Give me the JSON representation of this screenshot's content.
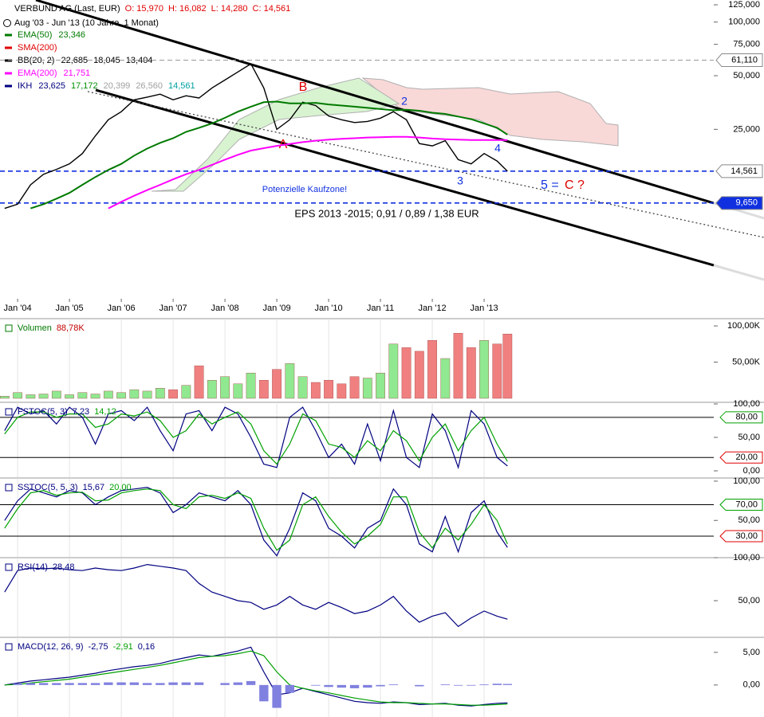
{
  "chart_data": [
    {
      "type": "line",
      "title": "VERBUND AG (Last, EUR)",
      "quote": [
        "O: 15,970",
        "H: 16,082",
        "L: 14,280",
        "C: 14,561"
      ],
      "subtitle": "Aug '03 - Jun '13 (10 Jahre, 1 Monat)",
      "log": true,
      "x": [
        2003.75,
        2004,
        2004.25,
        2004.5,
        2004.75,
        2005,
        2005.25,
        2005.5,
        2005.75,
        2006,
        2006.25,
        2006.5,
        2006.75,
        2007,
        2007.25,
        2007.5,
        2007.75,
        2008,
        2008.25,
        2008.5,
        2008.75,
        2009,
        2009.25,
        2009.5,
        2009.75,
        2010,
        2010.25,
        2010.5,
        2010.75,
        2011,
        2011.25,
        2011.5,
        2011.75,
        2012,
        2012.25,
        2012.5,
        2012.75,
        2013,
        2013.25,
        2013.45
      ],
      "xlim": [
        2003.66,
        2017.43
      ],
      "xticks": [
        {
          "value": 2004,
          "label": "Jan '04"
        },
        {
          "value": 2005,
          "label": "Jan '05"
        },
        {
          "value": 2006,
          "label": "Jan '06"
        },
        {
          "value": 2007,
          "label": "Jan '07"
        },
        {
          "value": 2008,
          "label": "Jan '08"
        },
        {
          "value": 2009,
          "label": "Jan '09"
        },
        {
          "value": 2010,
          "label": "Jan '10"
        },
        {
          "value": 2011,
          "label": "Jan '11"
        },
        {
          "value": 2012,
          "label": "Jan '12"
        },
        {
          "value": 2013,
          "label": "Jan '13"
        }
      ],
      "ylim": [
        2.8,
        133
      ],
      "yticks": [
        {
          "value": 125,
          "label": "125,000"
        },
        {
          "value": 100,
          "label": "100,000"
        },
        {
          "value": 75,
          "label": "75,000"
        },
        {
          "value": 50,
          "label": "50,000"
        },
        {
          "value": 25,
          "label": "25,000"
        }
      ],
      "series": [
        {
          "color": "#000000",
          "width": 1.4,
          "values": [
            9.0,
            9.5,
            12.2,
            14.0,
            14.9,
            16.0,
            18.3,
            23.0,
            28.3,
            31.4,
            36.6,
            37.9,
            39.4,
            36.6,
            38.6,
            37.5,
            42.7,
            47.3,
            52.5,
            58.3,
            42.7,
            25.0,
            28.3,
            35.5,
            34.0,
            29.7,
            28.3,
            27.3,
            27.7,
            28.9,
            31.4,
            28.3,
            20.8,
            20.2,
            21.6,
            16.9,
            16.0,
            18.3,
            16.6,
            14.561
          ]
        },
        {
          "color": "#007a00",
          "width": 2,
          "values": [
            null,
            null,
            9.0,
            9.5,
            10.2,
            11.0,
            12.2,
            13.5,
            14.8,
            16.0,
            17.8,
            19.5,
            21.0,
            22.3,
            24.2,
            25.5,
            27.0,
            29.0,
            31.4,
            33.5,
            35.5,
            35.8,
            35.0,
            35.0,
            35.2,
            34.5,
            34.0,
            33.5,
            33.0,
            32.5,
            32.0,
            32.2,
            31.8,
            31.0,
            30.5,
            29.5,
            28.5,
            27.0,
            25.5,
            23.35
          ]
        },
        {
          "color": "#ff00ff",
          "width": 2,
          "values": [
            null,
            null,
            null,
            null,
            null,
            null,
            null,
            null,
            9.0,
            9.8,
            10.6,
            11.4,
            12.2,
            13.1,
            14.0,
            14.8,
            15.8,
            16.9,
            18.0,
            19.0,
            19.6,
            20.2,
            20.7,
            21.2,
            21.6,
            21.9,
            22.1,
            22.3,
            22.5,
            22.6,
            22.7,
            22.7,
            22.5,
            22.2,
            22.0,
            21.9,
            21.8,
            21.8,
            21.8,
            21.75
          ]
        }
      ],
      "legend": [
        {
          "label": "EMA(50)",
          "color": "#007a00",
          "values": [
            "23,346"
          ]
        },
        {
          "label": "SMA(200)",
          "color": "#e00000"
        },
        {
          "label": "BB(20, 2)",
          "color": "#000000",
          "values": [
            "22,685",
            "18,045",
            "13,404"
          ]
        },
        {
          "label": "EMA(200)",
          "color": "#ff00ff",
          "values": [
            "21,751"
          ]
        },
        {
          "label": "IKH",
          "color": "#000080",
          "values": [
            "23,625",
            "17,172",
            "20,399",
            "26,560",
            "14,561"
          ],
          "value_colors": [
            "#000080",
            "#009000",
            "#a0a0a0",
            "#a0a0a0",
            "#00a0a0"
          ]
        }
      ],
      "levels": [
        {
          "value": 61.11,
          "label": "61,110",
          "line_color": "#999999",
          "box_fill": "#ffffff",
          "text_color": "#000000"
        },
        {
          "value": 14.561,
          "label": "14,561",
          "line_color": "#1030e0",
          "box_fill": "#ffffff",
          "text_color": "#000000"
        },
        {
          "value": 9.65,
          "label": "9,650",
          "line_color": "#1030e0",
          "box_fill": "#1030e0",
          "text_color": "#ffffff"
        }
      ],
      "annotations": [
        "A",
        "B",
        "2",
        "3",
        "4",
        "5 =",
        "C ?",
        "Potenzielle Kaufzone!",
        "EPS 2013 -2015; 0,91 / 0,89 / 1,38 EUR"
      ]
    },
    {
      "type": "bar",
      "title": "Volumen",
      "title_color": "#007a00",
      "x": [
        2003.75,
        2004,
        2004.25,
        2004.5,
        2004.75,
        2005,
        2005.25,
        2005.5,
        2005.75,
        2006,
        2006.25,
        2006.5,
        2006.75,
        2007,
        2007.25,
        2007.5,
        2007.75,
        2008,
        2008.25,
        2008.5,
        2008.75,
        2009,
        2009.25,
        2009.5,
        2009.75,
        2010,
        2010.25,
        2010.5,
        2010.75,
        2011,
        2011.25,
        2011.5,
        2011.75,
        2012,
        2012.25,
        2012.5,
        2012.75,
        2013,
        2013.25,
        2013.45
      ],
      "xlim": [
        2003.66,
        2017.43
      ],
      "ylim": [
        0,
        110
      ],
      "yticks": [
        {
          "value": 100,
          "label": "100,00K"
        },
        {
          "value": 50,
          "label": "50,00K"
        }
      ],
      "series": [
        {
          "up_color": "#90e890",
          "down_color": "#f08080",
          "label_color": "#c00000",
          "last_label": "88,78K",
          "values": [
            3,
            8,
            5,
            6,
            10,
            5,
            8,
            6,
            10,
            8,
            12,
            10,
            14,
            12,
            18,
            45,
            25,
            30,
            20,
            35,
            25,
            40,
            48,
            30,
            22,
            25,
            20,
            30,
            28,
            35,
            75,
            70,
            65,
            80,
            55,
            90,
            70,
            80,
            75,
            88.78
          ]
        }
      ]
    },
    {
      "type": "line",
      "title": "FSTOC(5, 3)",
      "title_color": "#000080",
      "x": [
        2003.75,
        2004,
        2004.25,
        2004.5,
        2004.75,
        2005,
        2005.25,
        2005.5,
        2005.75,
        2006,
        2006.25,
        2006.5,
        2006.75,
        2007,
        2007.25,
        2007.5,
        2007.75,
        2008,
        2008.25,
        2008.5,
        2008.75,
        2009,
        2009.25,
        2009.5,
        2009.75,
        2010,
        2010.25,
        2010.5,
        2010.75,
        2011,
        2011.25,
        2011.5,
        2011.75,
        2012,
        2012.25,
        2012.5,
        2012.75,
        2013,
        2013.25,
        2013.45
      ],
      "xlim": [
        2003.66,
        2017.43
      ],
      "ylim": [
        -10.7,
        102.4
      ],
      "yticks": [
        {
          "value": 100,
          "label": "100,00"
        },
        {
          "value": 50,
          "label": "50,00"
        },
        {
          "value": 0,
          "label": "0,00"
        }
      ],
      "levels": [
        {
          "value": 80,
          "label": "80,00",
          "color": "#00a000"
        },
        {
          "value": 20,
          "label": "20,00",
          "color": "#e00000"
        }
      ],
      "series": [
        {
          "color": "#000080",
          "last_label": "7,23",
          "values": [
            60,
            95,
            85,
            90,
            70,
            95,
            80,
            40,
            85,
            90,
            75,
            95,
            60,
            30,
            85,
            90,
            60,
            95,
            85,
            50,
            10,
            5,
            80,
            95,
            60,
            20,
            40,
            10,
            70,
            15,
            90,
            20,
            5,
            85,
            60,
            5,
            90,
            70,
            20,
            7.23
          ]
        },
        {
          "color": "#00a000",
          "last_label": "14,12",
          "values": [
            55,
            80,
            88,
            88,
            80,
            85,
            85,
            65,
            70,
            85,
            82,
            88,
            75,
            50,
            60,
            85,
            70,
            80,
            88,
            70,
            30,
            10,
            40,
            85,
            75,
            40,
            35,
            20,
            45,
            30,
            60,
            45,
            15,
            50,
            70,
            30,
            60,
            80,
            40,
            14.12
          ]
        }
      ]
    },
    {
      "type": "line",
      "title": "SSTOC(5, 5, 3)",
      "title_color": "#000080",
      "x": [
        2003.75,
        2004,
        2004.25,
        2004.5,
        2004.75,
        2005,
        2005.25,
        2005.5,
        2005.75,
        2006,
        2006.25,
        2006.5,
        2006.75,
        2007,
        2007.25,
        2007.5,
        2007.75,
        2008,
        2008.25,
        2008.5,
        2008.75,
        2009,
        2009.25,
        2009.5,
        2009.75,
        2010,
        2010.25,
        2010.5,
        2010.75,
        2011,
        2011.25,
        2011.5,
        2011.75,
        2012,
        2012.25,
        2012.5,
        2012.75,
        2013,
        2013.25,
        2013.45
      ],
      "xlim": [
        2003.66,
        2017.43
      ],
      "ylim": [
        2.6,
        104
      ],
      "yticks": [
        {
          "value": 100,
          "label": "100,00"
        },
        {
          "value": 50,
          "label": "50,00"
        }
      ],
      "levels": [
        {
          "value": 70,
          "label": "70,00",
          "color": "#00a000"
        },
        {
          "value": 30,
          "label": "30,00",
          "color": "#e00000"
        }
      ],
      "series": [
        {
          "color": "#000080",
          "last_label": "15,67",
          "values": [
            50,
            75,
            90,
            85,
            80,
            88,
            85,
            70,
            80,
            88,
            90,
            92,
            85,
            60,
            70,
            85,
            80,
            75,
            88,
            70,
            25,
            5,
            40,
            85,
            75,
            40,
            30,
            15,
            40,
            50,
            90,
            70,
            20,
            10,
            55,
            10,
            60,
            75,
            35,
            15.67
          ]
        },
        {
          "color": "#00a000",
          "last_label": "20,00",
          "values": [
            40,
            65,
            85,
            88,
            82,
            85,
            86,
            75,
            76,
            85,
            88,
            90,
            88,
            70,
            65,
            80,
            82,
            78,
            85,
            78,
            40,
            12,
            25,
            70,
            80,
            55,
            35,
            20,
            30,
            45,
            80,
            80,
            35,
            15,
            40,
            25,
            45,
            70,
            50,
            20.0
          ]
        }
      ]
    },
    {
      "type": "line",
      "title": "RSI(14)",
      "title_color": "#000080",
      "x": [
        2003.75,
        2004,
        2004.25,
        2004.5,
        2004.75,
        2005,
        2005.25,
        2005.5,
        2005.75,
        2006,
        2006.25,
        2006.5,
        2006.75,
        2007,
        2007.25,
        2007.5,
        2007.75,
        2008,
        2008.25,
        2008.5,
        2008.75,
        2009,
        2009.25,
        2009.5,
        2009.75,
        2010,
        2010.25,
        2010.5,
        2010.75,
        2011,
        2011.25,
        2011.5,
        2011.75,
        2012,
        2012.25,
        2012.5,
        2012.75,
        2013,
        2013.25,
        2013.45
      ],
      "xlim": [
        2003.66,
        2017.43
      ],
      "ylim": [
        7.4,
        100
      ],
      "yticks": [
        {
          "value": 100,
          "label": "100,00"
        },
        {
          "value": 50,
          "label": "50,00"
        }
      ],
      "series": [
        {
          "color": "#000080",
          "last_label": "28,48",
          "values": [
            60,
            85,
            88,
            87,
            88,
            86,
            85,
            88,
            86,
            85,
            88,
            92,
            90,
            88,
            85,
            70,
            60,
            55,
            50,
            48,
            40,
            45,
            55,
            45,
            40,
            48,
            42,
            35,
            38,
            45,
            55,
            38,
            25,
            32,
            36,
            20,
            30,
            38,
            32,
            28.48
          ]
        }
      ]
    },
    {
      "type": "line",
      "title": "MACD(12, 26, 9)",
      "title_color": "#000080",
      "x": [
        2003.75,
        2004,
        2004.25,
        2004.5,
        2004.75,
        2005,
        2005.25,
        2005.5,
        2005.75,
        2006,
        2006.25,
        2006.5,
        2006.75,
        2007,
        2007.25,
        2007.5,
        2007.75,
        2008,
        2008.25,
        2008.5,
        2008.75,
        2009,
        2009.25,
        2009.5,
        2009.75,
        2010,
        2010.25,
        2010.5,
        2010.75,
        2011,
        2011.25,
        2011.5,
        2011.75,
        2012,
        2012.25,
        2012.5,
        2012.75,
        2013,
        2013.25,
        2013.45
      ],
      "xlim": [
        2003.66,
        2017.43
      ],
      "ylim": [
        -4.9,
        7.3
      ],
      "yticks": [
        {
          "value": 5,
          "label": "5,00"
        },
        {
          "value": 0,
          "label": "0,00"
        }
      ],
      "series": [
        {
          "color": "#000080",
          "last_label": "-2,75",
          "values": [
            0,
            0.3,
            0.6,
            0.8,
            1.0,
            1.2,
            1.5,
            1.8,
            2.2,
            2.5,
            2.8,
            3.0,
            3.3,
            3.8,
            4.2,
            4.6,
            4.4,
            4.8,
            5.2,
            5.8,
            2.0,
            -1.5,
            -1.2,
            -0.5,
            -1.0,
            -1.5,
            -2.0,
            -2.5,
            -2.7,
            -2.8,
            -2.6,
            -2.7,
            -3.0,
            -2.9,
            -2.8,
            -3.1,
            -3.2,
            -3.0,
            -2.8,
            -2.75
          ]
        },
        {
          "color": "#00a000",
          "last_label": "-2,91",
          "values": [
            0,
            0.1,
            0.3,
            0.5,
            0.7,
            0.9,
            1.2,
            1.5,
            1.8,
            2.1,
            2.4,
            2.7,
            3.0,
            3.4,
            3.8,
            4.2,
            4.4,
            4.5,
            4.8,
            5.2,
            4.5,
            2.0,
            0,
            -0.5,
            -0.9,
            -1.2,
            -1.6,
            -2.0,
            -2.3,
            -2.6,
            -2.7,
            -2.7,
            -2.8,
            -2.9,
            -2.9,
            -3.0,
            -3.1,
            -3.1,
            -3.0,
            -2.91
          ]
        },
        {
          "color": "#8080e0",
          "kind": "bar",
          "label_color": "#000080",
          "last_label": "0,16",
          "values": [
            0,
            0.2,
            0.3,
            0.3,
            0.3,
            0.3,
            0.3,
            0.3,
            0.4,
            0.4,
            0.4,
            0.3,
            0.3,
            0.4,
            0.4,
            0.4,
            0,
            0.3,
            0.4,
            0.6,
            -2.5,
            -3.5,
            -1.2,
            0,
            -0.1,
            -0.3,
            -0.4,
            -0.5,
            -0.4,
            -0.2,
            0.1,
            0,
            -0.2,
            0,
            0.1,
            -0.1,
            -0.1,
            0.1,
            0.2,
            0.16
          ]
        }
      ]
    }
  ]
}
